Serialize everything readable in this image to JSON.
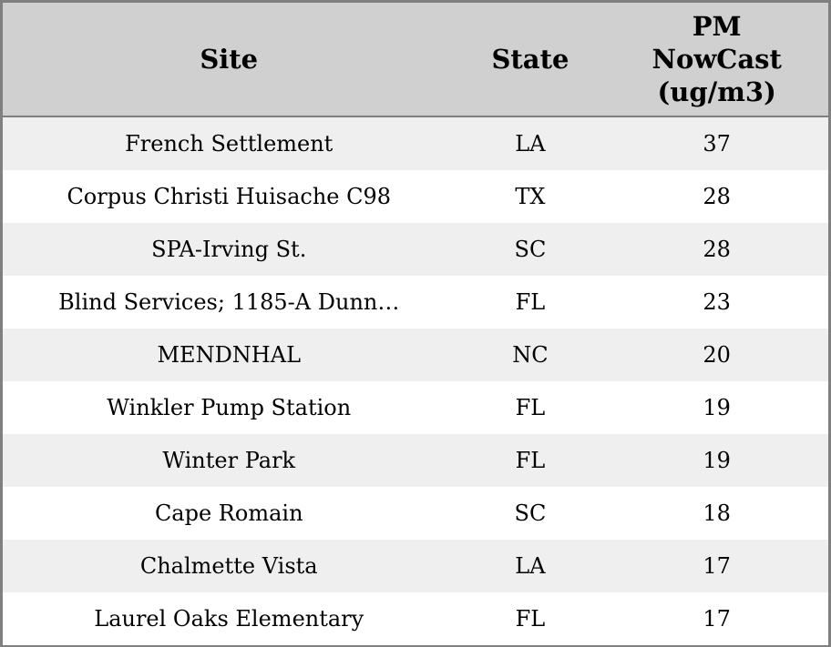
{
  "chart_data": {
    "type": "table",
    "title": "",
    "columns": [
      {
        "key": "site",
        "label": "Site"
      },
      {
        "key": "state",
        "label": "State"
      },
      {
        "key": "pm_nowcast",
        "label": "PM\nNowCast\n(ug/m3)"
      }
    ],
    "rows": [
      {
        "site": "French Settlement",
        "state": "LA",
        "pm_nowcast": 37
      },
      {
        "site": "Corpus Christi Huisache C98",
        "state": "TX",
        "pm_nowcast": 28
      },
      {
        "site": "SPA-Irving St.",
        "state": "SC",
        "pm_nowcast": 28
      },
      {
        "site": "Blind Services; 1185-A Dunn…",
        "state": "FL",
        "pm_nowcast": 23
      },
      {
        "site": "MENDNHAL",
        "state": "NC",
        "pm_nowcast": 20
      },
      {
        "site": "Winkler Pump Station",
        "state": "FL",
        "pm_nowcast": 19
      },
      {
        "site": "Winter Park",
        "state": "FL",
        "pm_nowcast": 19
      },
      {
        "site": "Cape Romain",
        "state": "SC",
        "pm_nowcast": 18
      },
      {
        "site": "Chalmette Vista",
        "state": "LA",
        "pm_nowcast": 17
      },
      {
        "site": "Laurel Oaks Elementary",
        "state": "FL",
        "pm_nowcast": 17
      }
    ]
  },
  "colors": {
    "header_bg": "#d0d0d0",
    "row_alt_bg": "#efefef",
    "row_bg": "#ffffff",
    "border": "#808080",
    "text": "#000000"
  }
}
